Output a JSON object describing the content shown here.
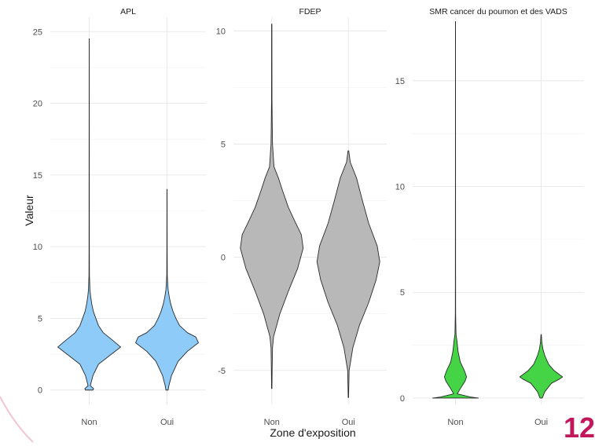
{
  "chart_data": {
    "type": "violin",
    "xlabel": "Zone d'exposition",
    "ylabel": "Valeur",
    "categories": [
      "Non",
      "Oui"
    ],
    "legend": "none",
    "grid": true,
    "panels": [
      {
        "title": "APL",
        "fill": "#8ecbf9",
        "ylim": [
          -1,
          26
        ],
        "yticks": [
          0,
          5,
          10,
          15,
          20,
          25
        ],
        "series": [
          {
            "name": "Non",
            "min": 0.0,
            "max": 24.5,
            "profile": [
              [
                0.0,
                0.1
              ],
              [
                0.1,
                0.12
              ],
              [
                0.3,
                0.03
              ],
              [
                1.0,
                0.1
              ],
              [
                1.8,
                0.25
              ],
              [
                2.5,
                0.6
              ],
              [
                3.0,
                0.85
              ],
              [
                3.5,
                0.62
              ],
              [
                4.0,
                0.38
              ],
              [
                4.5,
                0.25
              ],
              [
                5.0,
                0.18
              ],
              [
                5.5,
                0.11
              ],
              [
                6.0,
                0.07
              ],
              [
                6.5,
                0.04
              ],
              [
                7.0,
                0.02
              ],
              [
                7.6,
                0.012
              ],
              [
                8.0,
                0.006
              ],
              [
                10,
                0.004
              ],
              [
                15,
                0.003
              ],
              [
                20,
                0.002
              ],
              [
                24.5,
                0.001
              ]
            ]
          },
          {
            "name": "Oui",
            "min": 0.0,
            "max": 14.0,
            "profile": [
              [
                0.0,
                0.03
              ],
              [
                0.3,
                0.05
              ],
              [
                1.0,
                0.12
              ],
              [
                2.0,
                0.3
              ],
              [
                2.7,
                0.55
              ],
              [
                3.3,
                0.85
              ],
              [
                3.7,
                0.78
              ],
              [
                4.0,
                0.55
              ],
              [
                4.5,
                0.34
              ],
              [
                5.0,
                0.24
              ],
              [
                5.5,
                0.16
              ],
              [
                6.0,
                0.1
              ],
              [
                6.5,
                0.06
              ],
              [
                7.0,
                0.03
              ],
              [
                7.6,
                0.015
              ],
              [
                8.0,
                0.007
              ],
              [
                10,
                0.004
              ],
              [
                14,
                0.002
              ]
            ]
          }
        ]
      },
      {
        "title": "FDEP",
        "fill": "#b8b8b8",
        "ylim": [
          -6.5,
          10.6
        ],
        "yticks": [
          -5,
          0,
          5,
          10
        ],
        "series": [
          {
            "name": "Non",
            "min": -5.8,
            "max": 10.3,
            "profile": [
              [
                -5.8,
                0.005
              ],
              [
                -5.0,
                0.01
              ],
              [
                -4.0,
                0.02
              ],
              [
                -3.5,
                0.05
              ],
              [
                -2.5,
                0.22
              ],
              [
                -1.5,
                0.45
              ],
              [
                -0.5,
                0.7
              ],
              [
                0.4,
                0.85
              ],
              [
                1.0,
                0.8
              ],
              [
                1.5,
                0.65
              ],
              [
                2.2,
                0.45
              ],
              [
                3.0,
                0.28
              ],
              [
                3.5,
                0.18
              ],
              [
                4.0,
                0.06
              ],
              [
                5.0,
                0.02
              ],
              [
                5.6,
                0.015
              ],
              [
                7.0,
                0.006
              ],
              [
                10.3,
                0.004
              ]
            ]
          },
          {
            "name": "Oui",
            "min": -6.2,
            "max": 4.7,
            "profile": [
              [
                -6.2,
                0.005
              ],
              [
                -5.0,
                0.02
              ],
              [
                -4.0,
                0.12
              ],
              [
                -3.0,
                0.3
              ],
              [
                -2.0,
                0.55
              ],
              [
                -1.0,
                0.75
              ],
              [
                -0.2,
                0.85
              ],
              [
                0.5,
                0.78
              ],
              [
                1.5,
                0.55
              ],
              [
                2.5,
                0.38
              ],
              [
                3.5,
                0.22
              ],
              [
                4.2,
                0.05
              ],
              [
                4.7,
                0.01
              ]
            ]
          }
        ]
      },
      {
        "title": "SMR cancer du poumon et des VADS",
        "fill": "#45d445",
        "ylim": [
          -0.3,
          18.0
        ],
        "yticks": [
          0,
          5,
          10,
          15
        ],
        "series": [
          {
            "name": "Non",
            "min": 0.0,
            "max": 17.8,
            "profile": [
              [
                0.0,
                0.62
              ],
              [
                0.05,
                0.4
              ],
              [
                0.2,
                0.05
              ],
              [
                0.5,
                0.15
              ],
              [
                0.8,
                0.26
              ],
              [
                1.0,
                0.3
              ],
              [
                1.3,
                0.24
              ],
              [
                1.7,
                0.13
              ],
              [
                2.2,
                0.07
              ],
              [
                2.7,
                0.04
              ],
              [
                3.0,
                0.015
              ],
              [
                3.6,
                0.008
              ],
              [
                4.0,
                0.004
              ],
              [
                6.0,
                0.003
              ],
              [
                10,
                0.002
              ],
              [
                17.8,
                0.001
              ]
            ]
          },
          {
            "name": "Oui",
            "min": 0.0,
            "max": 3.0,
            "profile": [
              [
                0.0,
                0.03
              ],
              [
                0.3,
                0.1
              ],
              [
                0.7,
                0.28
              ],
              [
                0.9,
                0.5
              ],
              [
                1.0,
                0.58
              ],
              [
                1.1,
                0.5
              ],
              [
                1.3,
                0.35
              ],
              [
                1.6,
                0.2
              ],
              [
                2.0,
                0.1
              ],
              [
                2.3,
                0.05
              ],
              [
                2.6,
                0.02
              ],
              [
                3.0,
                0.005
              ]
            ]
          }
        ]
      }
    ]
  },
  "corner_mark": "12"
}
